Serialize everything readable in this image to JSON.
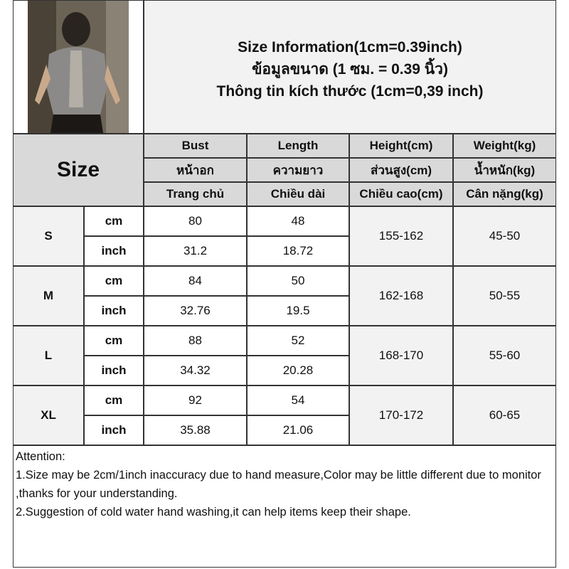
{
  "title": {
    "line1": "Size Information(1cm=0.39inch)",
    "line2": "ข้อมูลขนาด (1 ซม. = 0.39 นิ้ว)",
    "line3": "Thông tin kích thước (1cm=0,39 inch)"
  },
  "header": {
    "size_label": "Size",
    "columns": [
      {
        "en": "Bust",
        "th": "หน้าอก",
        "vi": "Trang chủ"
      },
      {
        "en": "Length",
        "th": "ความยาว",
        "vi": "Chiều dài"
      },
      {
        "en": "Height(cm)",
        "th": "ส่วนสูง(cm)",
        "vi": "Chiều cao(cm)"
      },
      {
        "en": "Weight(kg)",
        "th": "น้ำหนัก(kg)",
        "vi": "Cân nặng(kg)"
      }
    ]
  },
  "units": {
    "cm": "cm",
    "inch": "inch"
  },
  "rows": [
    {
      "size": "S",
      "cm": [
        "80",
        "48"
      ],
      "inch": [
        "31.2",
        "18.72"
      ],
      "height": "155-162",
      "weight": "45-50"
    },
    {
      "size": "M",
      "cm": [
        "84",
        "50"
      ],
      "inch": [
        "32.76",
        "19.5"
      ],
      "height": "162-168",
      "weight": "50-55"
    },
    {
      "size": "L",
      "cm": [
        "88",
        "52"
      ],
      "inch": [
        "34.32",
        "20.28"
      ],
      "height": "168-170",
      "weight": "55-60"
    },
    {
      "size": "XL",
      "cm": [
        "92",
        "54"
      ],
      "inch": [
        "35.88",
        "21.06"
      ],
      "height": "170-172",
      "weight": "60-65"
    }
  ],
  "attention": {
    "heading": "Attention:",
    "note1": "1.Size may be 2cm/1inch inaccuracy due to hand measure,Color may be little different due to monitor ,thanks for your understanding.",
    "note2": "2.Suggestion of cold water hand washing,it can help items keep their shape."
  }
}
